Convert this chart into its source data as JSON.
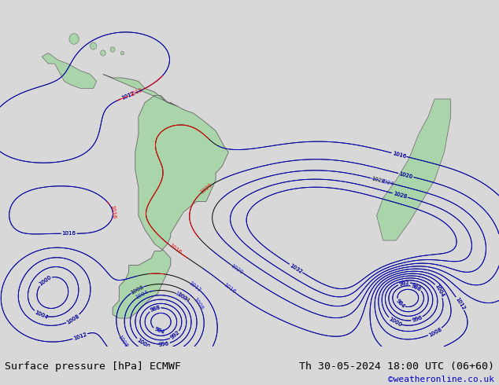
{
  "title_left": "Surface pressure [hPa] ECMWF",
  "title_right": "Th 30-05-2024 18:00 UTC (06+60)",
  "credit": "©weatheronline.co.uk",
  "bg_color": "#d8d8d8",
  "map_ocean_color": "#d8d8d8",
  "map_land_color": "#aad4aa",
  "figure_width": 6.34,
  "figure_height": 4.9,
  "dpi": 100,
  "bottom_bar_color": "#ffffff",
  "title_fontsize": 9.5,
  "credit_fontsize": 8,
  "credit_color": "#0000cc",
  "contour_black_color": "#000000",
  "contour_blue_color": "#0000ff",
  "contour_red_color": "#ff0000"
}
